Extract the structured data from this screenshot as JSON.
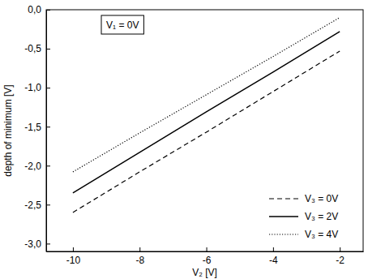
{
  "chart_data": {
    "type": "line",
    "annotation": "V₁ = 0V",
    "x_label": "V₂ [V]",
    "y_label": "depth of minimum  [V]",
    "x": [
      -10,
      -8,
      -6,
      -4,
      -2
    ],
    "series": [
      {
        "name": "V₃ = 0V",
        "color": "#000000",
        "line_style": "dashed",
        "values": [
          -2.6,
          -2.08,
          -1.57,
          -1.05,
          -0.53
        ]
      },
      {
        "name": "V₃ = 2V",
        "color": "#000000",
        "line_style": "solid",
        "values": [
          -2.35,
          -1.83,
          -1.31,
          -0.8,
          -0.28
        ]
      },
      {
        "name": "V₃ = 4V",
        "color": "#000000",
        "line_style": "dotted",
        "values": [
          -2.08,
          -1.58,
          -1.09,
          -0.6,
          -0.1
        ]
      }
    ],
    "xlim": [
      -10.8,
      -1.3
    ],
    "xticks": [
      -10,
      -8,
      -6,
      -4,
      -2
    ],
    "ylim": [
      -3.1,
      0
    ],
    "yticks": [
      {
        "value": -3.0,
        "label": "-3,0"
      },
      {
        "value": -2.5,
        "label": "-2,5"
      },
      {
        "value": -2.0,
        "label": "-2,0"
      },
      {
        "value": -1.5,
        "label": "-1,5"
      },
      {
        "value": -1.0,
        "label": "-1,0"
      },
      {
        "value": -0.5,
        "label": "-0,5"
      },
      {
        "value": 0.0,
        "label": "0,0"
      }
    ],
    "legend": "lower right",
    "grid": false
  }
}
